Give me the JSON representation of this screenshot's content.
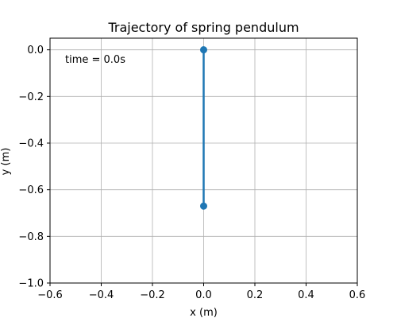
{
  "chart_data": {
    "type": "line",
    "title": "Trajectory of spring pendulum",
    "xlabel": "x (m)",
    "ylabel": "y (m)",
    "xlim": [
      -0.6,
      0.6
    ],
    "ylim": [
      -1.0,
      0.05
    ],
    "xticks": [
      -0.6,
      -0.4,
      -0.2,
      0.0,
      0.2,
      0.4,
      0.6
    ],
    "xtick_labels": [
      "−0.6",
      "−0.4",
      "−0.2",
      "0.0",
      "0.2",
      "0.4",
      "0.6"
    ],
    "yticks": [
      0.0,
      -0.2,
      -0.4,
      -0.6,
      -0.8,
      -1.0
    ],
    "ytick_labels": [
      "0.0",
      "−0.2",
      "−0.4",
      "−0.6",
      "−0.8",
      "−1.0"
    ],
    "grid": true,
    "annotation": "time = 0.0s",
    "series": [
      {
        "color": "#1f77b4",
        "points": [
          {
            "x": 0.0,
            "y": 0.0
          },
          {
            "x": 0.0,
            "y": -0.67
          }
        ]
      }
    ]
  }
}
